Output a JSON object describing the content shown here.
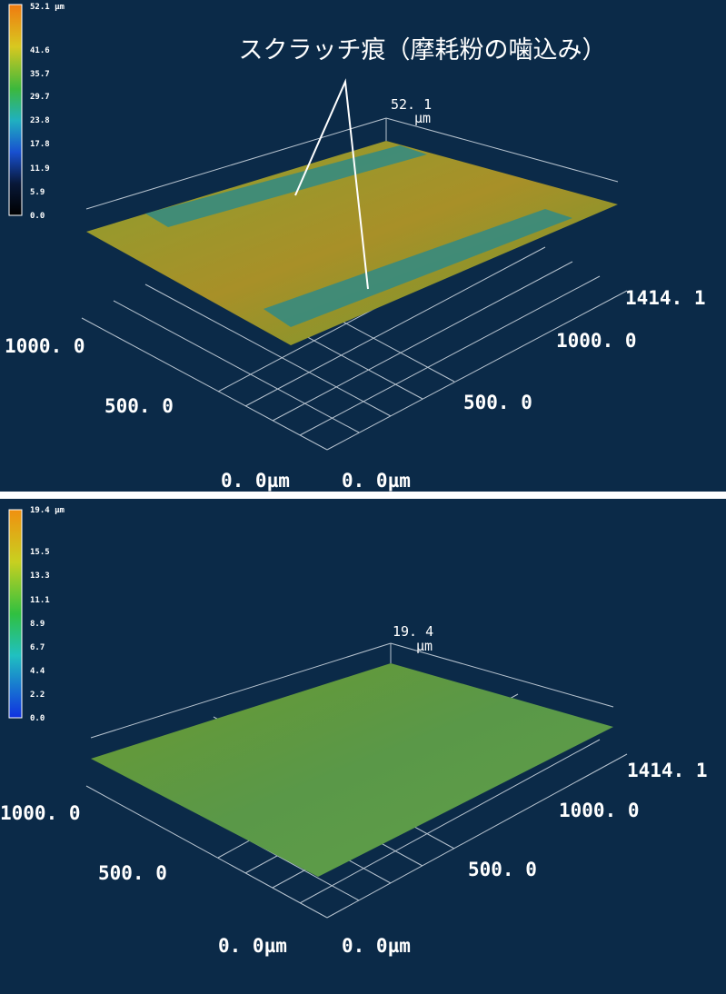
{
  "panels": [
    {
      "colorbar": {
        "labels": [
          "52.1 µm",
          "41.6",
          "35.7",
          "29.7",
          "23.8",
          "17.8",
          "11.9",
          "5.9",
          "0.0"
        ]
      },
      "annotation": "スクラッチ痕（摩耗粉の噛込み）",
      "z_max": "52. 1",
      "z_unit": "µm",
      "right_axis": [
        "1414. 1",
        "1000. 0",
        "500. 0",
        "0. 0µm"
      ],
      "left_axis": [
        "1000. 0",
        "500. 0",
        "0. 0µm"
      ]
    },
    {
      "colorbar": {
        "labels": [
          "19.4 µm",
          "15.5",
          "13.3",
          "11.1",
          "8.9",
          "6.7",
          "4.4",
          "2.2",
          "0.0"
        ]
      },
      "z_max": "19. 4",
      "z_unit": "µm",
      "right_axis": [
        "1414. 1",
        "1000. 0",
        "500. 0",
        "0. 0µm"
      ],
      "left_axis": [
        "1000. 0",
        "500. 0",
        "0. 0µm"
      ]
    }
  ]
}
